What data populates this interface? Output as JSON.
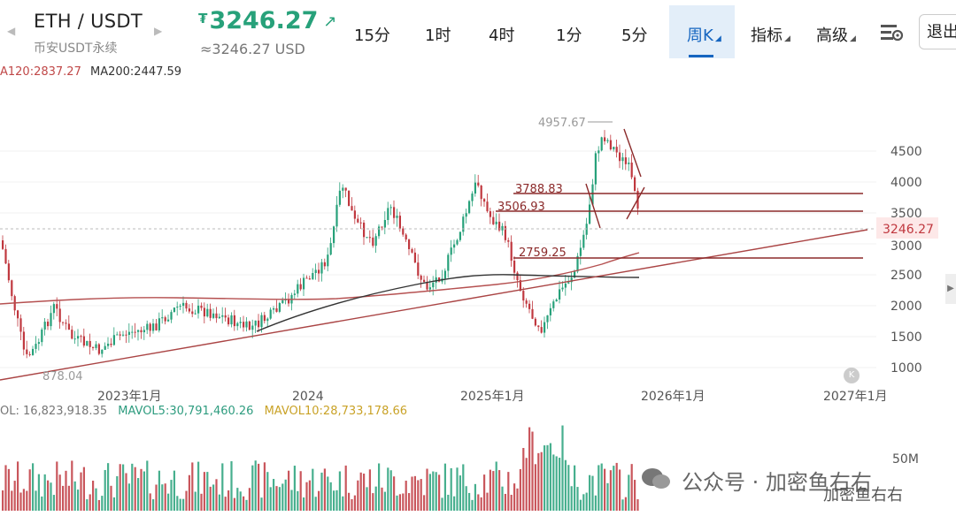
{
  "header": {
    "pair": "ETH / USDT",
    "pair_sub": "币安USDT永续",
    "price": "3246.27",
    "price_currency_glyph": "₮",
    "price_usd": "≈3246.27 USD",
    "timeframes": [
      "15分",
      "1时",
      "4时",
      "1分",
      "5分"
    ],
    "active_timeframe": "周K",
    "indicator_label": "指标",
    "advanced_label": "高级",
    "exit_label": "退出",
    "colors": {
      "up": "#27a17a",
      "down": "#c0383f",
      "accent": "#1565c0"
    }
  },
  "ma_legend": {
    "ma120": "A120:2837.27",
    "ma200": "MA200:2447.59"
  },
  "volume_legend": {
    "vol": "OL: 16,823,918.35",
    "mavol5": "MAVOL5:30,791,460.26",
    "mavol10": "MAVOL10:28,733,178.66"
  },
  "chart_data": {
    "type": "candlestick",
    "y_axis_ticks": [
      "4500",
      "4000",
      "3500",
      "3000",
      "2500",
      "2000",
      "1500",
      "1000"
    ],
    "x_axis_ticks": [
      "2023年1月",
      "2024",
      "2025年1月",
      "2026年1月",
      "2027年1月"
    ],
    "volume_tick": "50M",
    "current_price_tag": "3246.27",
    "annotations": {
      "high": "4957.67",
      "low": "878.04",
      "level1": "3788.83",
      "level2": "3506.93",
      "level3": "2759.25"
    },
    "horizontal_levels": [
      3788.83,
      3506.93,
      2759.25
    ],
    "ylim": [
      800,
      5100
    ]
  },
  "watermark": {
    "text": "公众号 · 加密鱼右右",
    "corner": "加密鱼右右"
  }
}
